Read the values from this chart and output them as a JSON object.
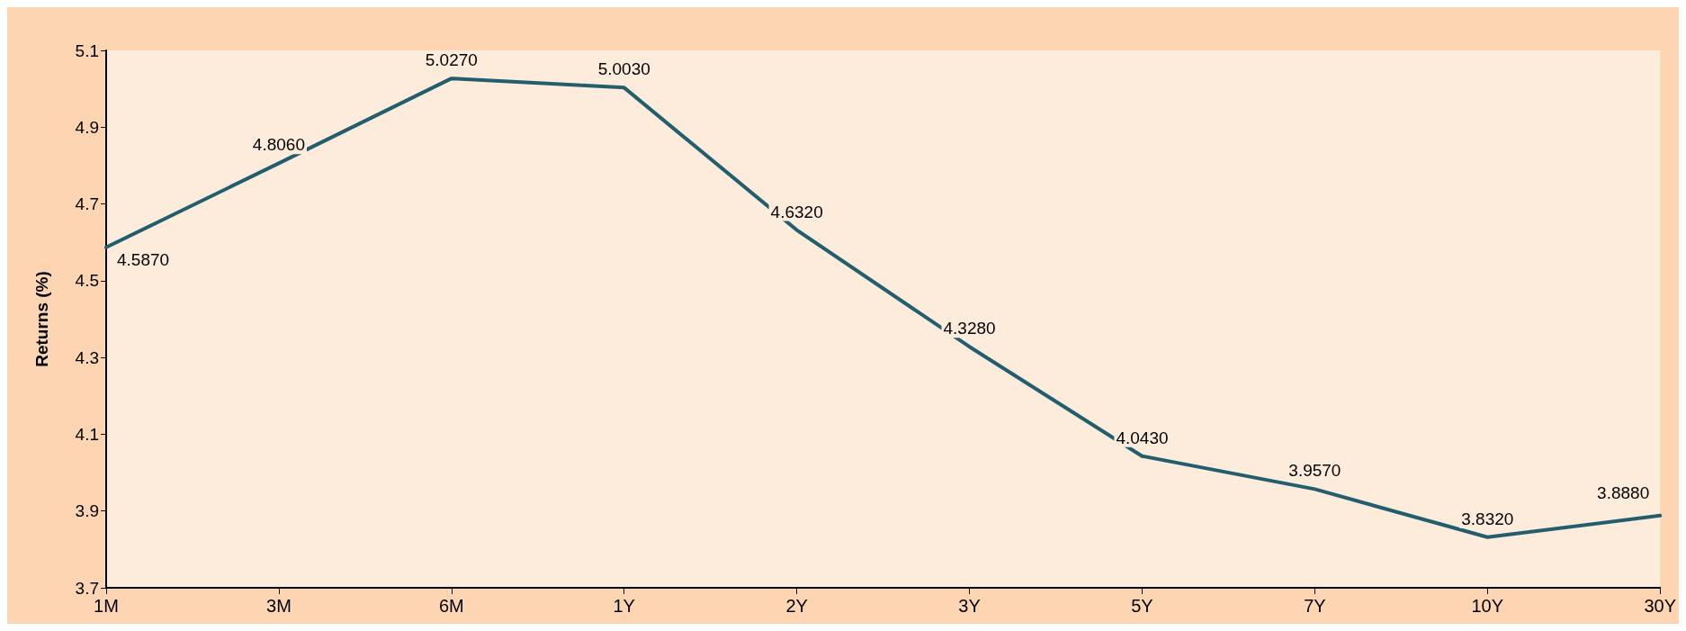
{
  "chart_data": {
    "type": "line",
    "ylabel": "Returns (%)",
    "categories": [
      "1M",
      "3M",
      "6M",
      "1Y",
      "2Y",
      "3Y",
      "5Y",
      "7Y",
      "10Y",
      "30Y"
    ],
    "series": [
      {
        "color": "#225e6e",
        "values": [
          4.587,
          4.806,
          5.027,
          5.003,
          4.632,
          4.328,
          4.043,
          3.957,
          3.832,
          3.888
        ],
        "value_labels": [
          "4.5870",
          "4.8060",
          "5.0270",
          "5.0030",
          "4.6320",
          "4.3280",
          "4.0430",
          "3.9570",
          "3.8320",
          "3.8880"
        ]
      }
    ],
    "ylim": [
      3.7,
      5.1
    ],
    "yticks": [
      3.7,
      3.9,
      4.1,
      4.3,
      4.5,
      4.7,
      4.9,
      5.1
    ],
    "grid": false,
    "marker": "none",
    "line_style": "solid"
  }
}
